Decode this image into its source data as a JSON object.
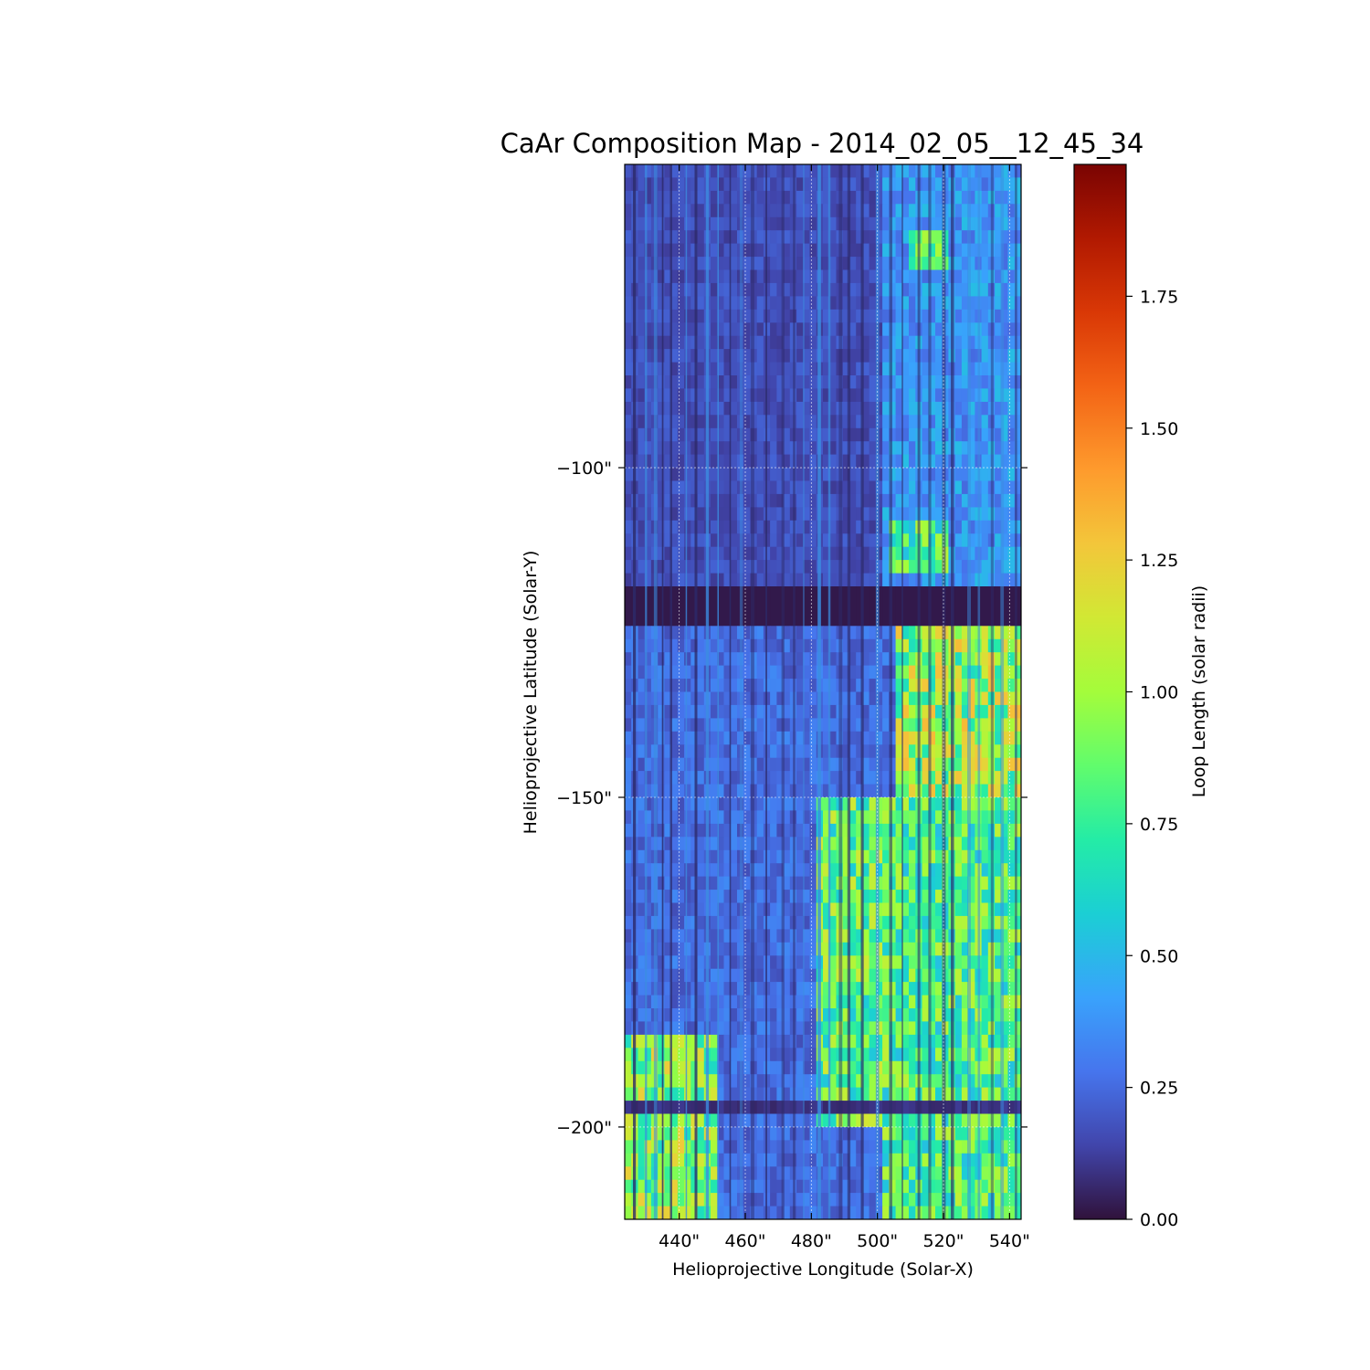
{
  "chart_data": {
    "type": "heatmap",
    "title": "CaAr Composition Map - 2014_02_05__12_45_34",
    "xlabel": "Helioprojective Longitude (Solar-X)",
    "ylabel": "Helioprojective Latitude (Solar-Y)",
    "x_ticks": [
      440,
      460,
      480,
      500,
      520,
      540
    ],
    "x_tick_labels": [
      "440\"",
      "460\"",
      "480\"",
      "500\"",
      "520\"",
      "540\""
    ],
    "y_ticks": [
      -100,
      -150,
      -200
    ],
    "y_tick_labels": [
      "−100\"",
      "−150\"",
      "−200\""
    ],
    "xlim": [
      423.5,
      543.5
    ],
    "ylim": [
      -214,
      -54
    ],
    "grid": true,
    "colormap": "turbo",
    "colorbar": {
      "label": "Loop Length (solar radii)",
      "range": [
        0,
        2.0
      ],
      "ticks": [
        0.0,
        0.25,
        0.5,
        0.75,
        1.0,
        1.25,
        1.5,
        1.75
      ],
      "tick_labels": [
        "0.00",
        "0.25",
        "0.50",
        "0.75",
        "1.00",
        "1.25",
        "1.50",
        "1.75"
      ]
    },
    "regions": [
      {
        "desc": "upper-left quiet region",
        "x": [
          423.5,
          500
        ],
        "y": [
          -117,
          -54
        ],
        "value": 0.2
      },
      {
        "desc": "upper-right region",
        "x": [
          500,
          543.5
        ],
        "y": [
          -117,
          -54
        ],
        "value": 0.45
      },
      {
        "desc": "bright patch",
        "x": [
          508,
          520
        ],
        "y": [
          -70,
          -64
        ],
        "value": 0.9
      },
      {
        "desc": "bright patch",
        "x": [
          502,
          520
        ],
        "y": [
          -115,
          -107
        ],
        "value": 0.95
      },
      {
        "desc": "dark horizontal band",
        "x": [
          423.5,
          543.5
        ],
        "y": [
          -124,
          -117
        ],
        "value": 0.02
      },
      {
        "desc": "lower-right active region",
        "x": [
          505,
          543.5
        ],
        "y": [
          -150,
          -124
        ],
        "value": 1.15
      },
      {
        "desc": "lower-right active region",
        "x": [
          500,
          543.5
        ],
        "y": [
          -214,
          -150
        ],
        "value": 0.95
      },
      {
        "desc": "lower-middle region",
        "x": [
          480,
          500
        ],
        "y": [
          -200,
          -150
        ],
        "value": 1.0
      },
      {
        "desc": "lower-left region",
        "x": [
          423.5,
          450
        ],
        "y": [
          -214,
          -185
        ],
        "value": 1.1
      },
      {
        "desc": "dark horizontal line",
        "x": [
          423.5,
          543.5
        ],
        "y": [
          -196.5,
          -195.5
        ],
        "value": 0.1
      }
    ]
  }
}
